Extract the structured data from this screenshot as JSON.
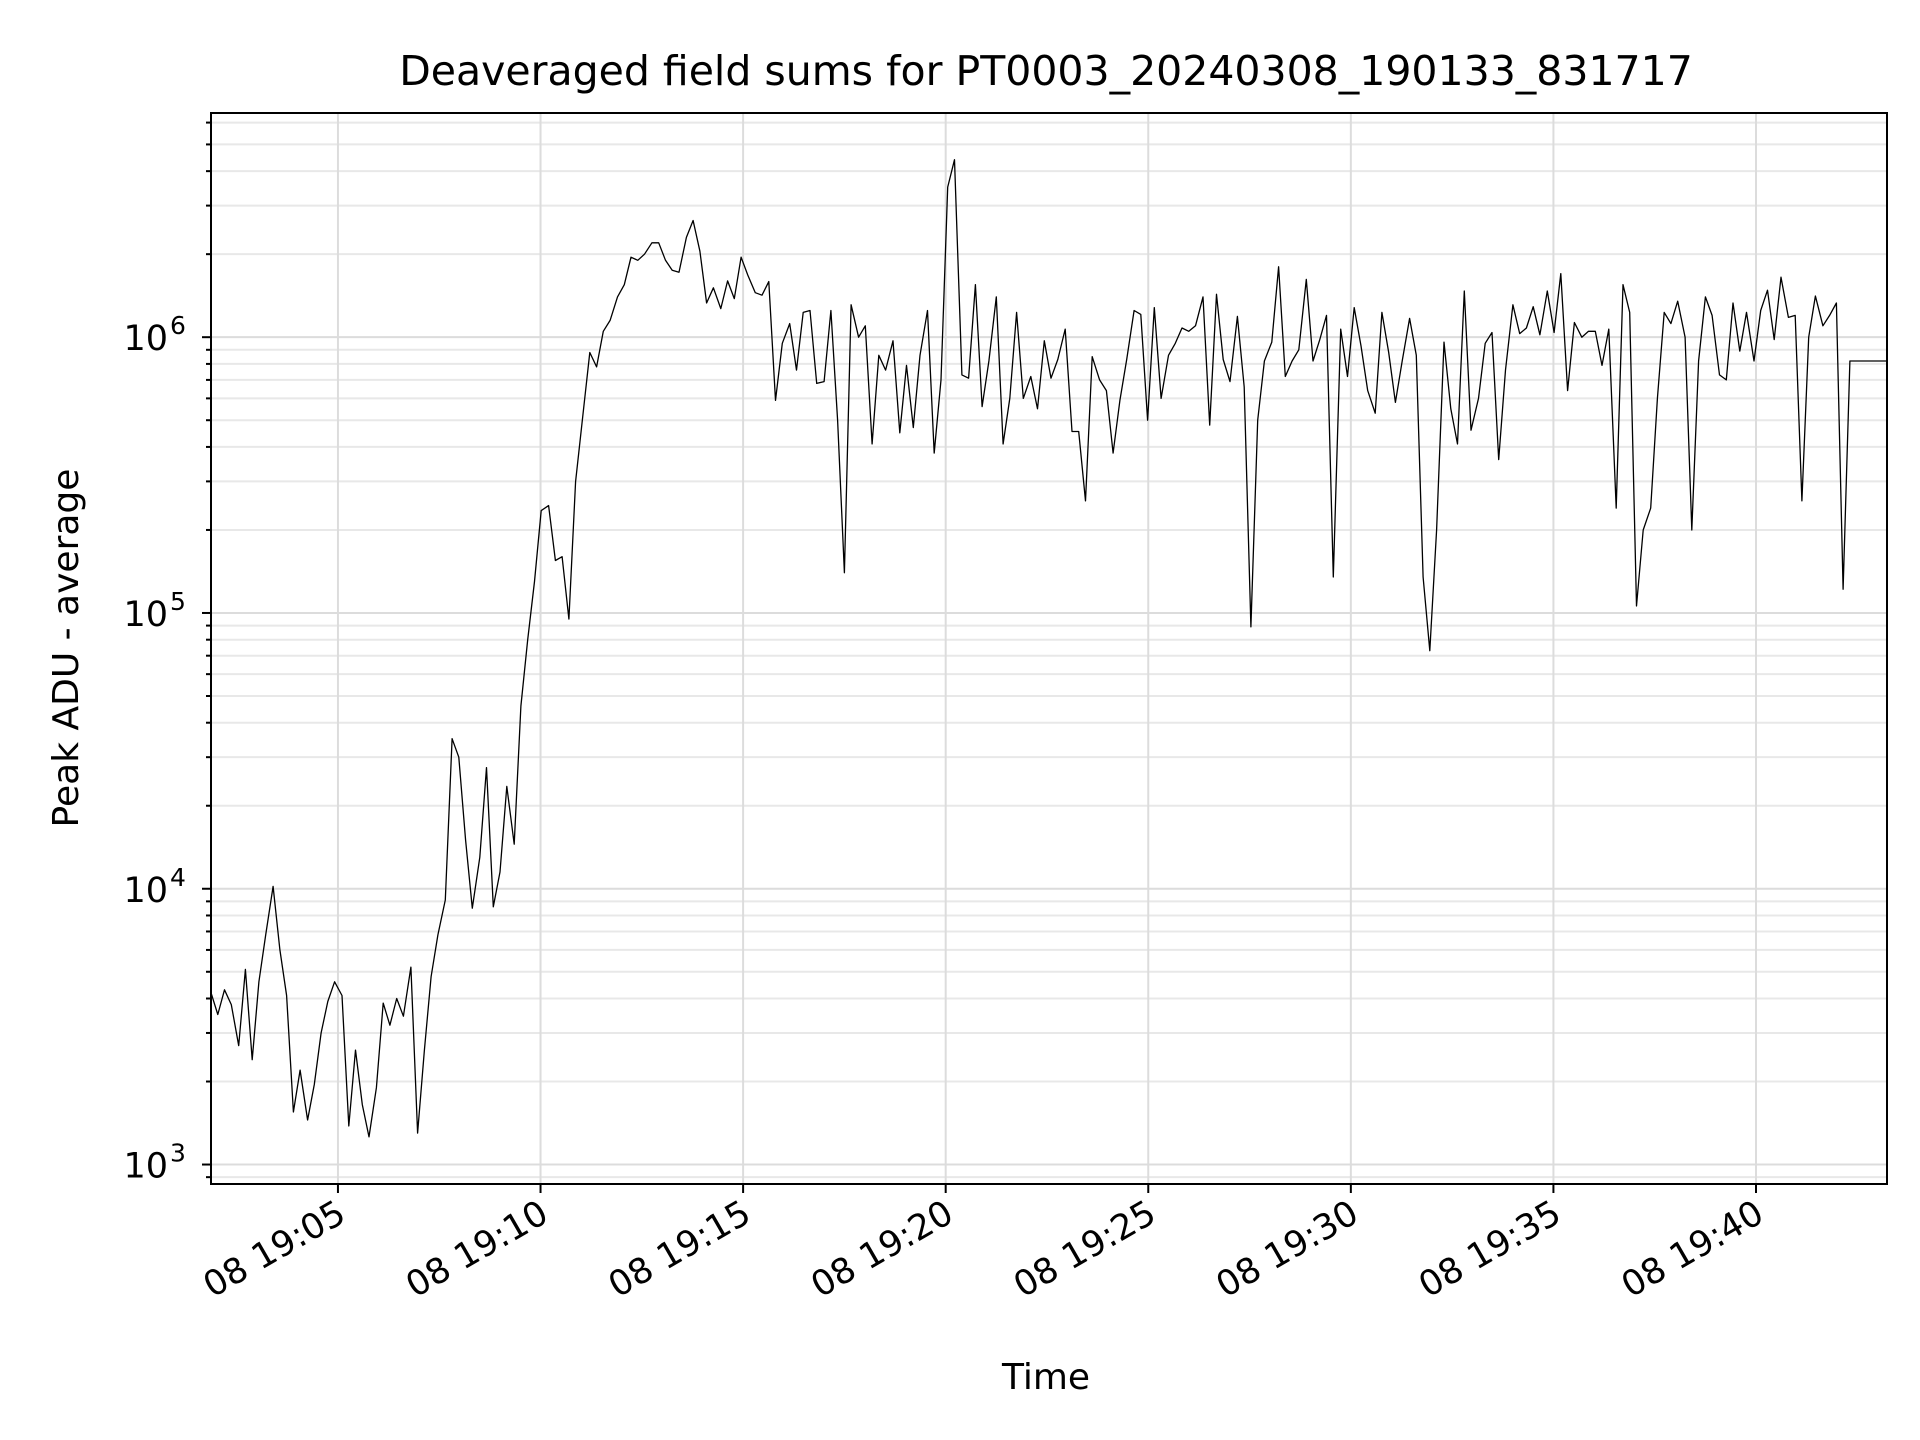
{
  "chart_data": {
    "type": "line",
    "title": "Deaveraged field sums for PT0003_20240308_190133_831717",
    "xlabel": "Time",
    "ylabel": "Peak ADU - average",
    "y_scale": "log",
    "ylim": [
      850,
      6500000
    ],
    "xlim": [
      "08 19:01:52",
      "08 19:43:14"
    ],
    "grid": true,
    "x_ticks": [
      "08 19:05",
      "08 19:10",
      "08 19:15",
      "08 19:20",
      "08 19:25",
      "08 19:30",
      "08 19:35",
      "08 19:40"
    ],
    "x_tick_times": [
      "19:05:00",
      "19:10:00",
      "19:15:00",
      "19:20:00",
      "19:25:00",
      "19:30:00",
      "19:35:00",
      "19:40:00"
    ],
    "y_ticks": [
      {
        "value": 1000,
        "base": "10",
        "exp": "3"
      },
      {
        "value": 10000,
        "base": "10",
        "exp": "4"
      },
      {
        "value": 100000,
        "base": "10",
        "exp": "5"
      },
      {
        "value": 1000000,
        "base": "10",
        "exp": "6"
      }
    ],
    "series": [
      {
        "line_color": "#000000",
        "x": [
          "19:01:52",
          "19:02:02",
          "19:02:12",
          "19:02:22",
          "19:02:33",
          "19:02:43",
          "19:02:53",
          "19:03:03",
          "19:03:13",
          "19:03:24",
          "19:03:34",
          "19:03:44",
          "19:03:54",
          "19:04:04",
          "19:04:15",
          "19:04:25",
          "19:04:35",
          "19:04:45",
          "19:04:55",
          "19:05:06",
          "19:05:16",
          "19:05:26",
          "19:05:36",
          "19:05:46",
          "19:05:57",
          "19:06:07",
          "19:06:17",
          "19:06:27",
          "19:06:37",
          "19:06:48",
          "19:06:58",
          "19:07:08",
          "19:07:18",
          "19:07:28",
          "19:07:39",
          "19:07:49",
          "19:07:59",
          "19:08:09",
          "19:08:19",
          "19:08:30",
          "19:08:40",
          "19:08:50",
          "19:09:00",
          "19:09:10",
          "19:09:21",
          "19:09:31",
          "19:09:41",
          "19:09:51",
          "19:10:01",
          "19:10:12",
          "19:10:22",
          "19:10:32",
          "19:10:42",
          "19:10:52",
          "19:11:03",
          "19:11:13",
          "19:11:23",
          "19:11:33",
          "19:11:43",
          "19:11:54",
          "19:12:04",
          "19:12:14",
          "19:12:24",
          "19:12:34",
          "19:12:45",
          "19:12:55",
          "19:13:05",
          "19:13:15",
          "19:13:25",
          "19:13:36",
          "19:13:46",
          "19:13:56",
          "19:14:06",
          "19:14:16",
          "19:14:27",
          "19:14:37",
          "19:14:47",
          "19:14:57",
          "19:15:07",
          "19:15:18",
          "19:15:28",
          "19:15:38",
          "19:15:48",
          "19:15:58",
          "19:16:09",
          "19:16:19",
          "19:16:29",
          "19:16:39",
          "19:16:49",
          "19:17:00",
          "19:17:10",
          "19:17:20",
          "19:17:30",
          "19:17:40",
          "19:17:51",
          "19:18:01",
          "19:18:11",
          "19:18:21",
          "19:18:31",
          "19:18:42",
          "19:18:52",
          "19:19:02",
          "19:19:12",
          "19:19:22",
          "19:19:33",
          "19:19:43",
          "19:19:53",
          "19:20:03",
          "19:20:13",
          "19:20:24",
          "19:20:34",
          "19:20:44",
          "19:20:54",
          "19:21:04",
          "19:21:15",
          "19:21:25",
          "19:21:35",
          "19:21:45",
          "19:21:55",
          "19:22:06",
          "19:22:16",
          "19:22:26",
          "19:22:36",
          "19:22:46",
          "19:22:57",
          "19:23:07",
          "19:23:17",
          "19:23:27",
          "19:23:37",
          "19:23:48",
          "19:23:58",
          "19:24:08",
          "19:24:18",
          "19:24:28",
          "19:24:39",
          "19:24:49",
          "19:24:59",
          "19:25:09",
          "19:25:19",
          "19:25:30",
          "19:25:40",
          "19:25:50",
          "19:26:00",
          "19:26:10",
          "19:26:21",
          "19:26:31",
          "19:26:41",
          "19:26:51",
          "19:27:01",
          "19:27:12",
          "19:27:22",
          "19:27:32",
          "19:27:42",
          "19:27:52",
          "19:28:03",
          "19:28:13",
          "19:28:23",
          "19:28:33",
          "19:28:43",
          "19:28:54",
          "19:29:04",
          "19:29:14",
          "19:29:24",
          "19:29:34",
          "19:29:45",
          "19:29:55",
          "19:30:05",
          "19:30:15",
          "19:30:25",
          "19:30:36",
          "19:30:46",
          "19:30:56",
          "19:31:06",
          "19:31:16",
          "19:31:27",
          "19:31:37",
          "19:31:47",
          "19:31:57",
          "19:32:07",
          "19:32:18",
          "19:32:28",
          "19:32:38",
          "19:32:48",
          "19:32:58",
          "19:33:09",
          "19:33:19",
          "19:33:29",
          "19:33:39",
          "19:33:49",
          "19:34:00",
          "19:34:10",
          "19:34:20",
          "19:34:30",
          "19:34:40",
          "19:34:51",
          "19:35:01",
          "19:35:11",
          "19:35:21",
          "19:35:31",
          "19:35:42",
          "19:35:52",
          "19:36:02",
          "19:36:12",
          "19:36:22",
          "19:36:33",
          "19:36:43",
          "19:36:53",
          "19:37:03",
          "19:37:13",
          "19:37:24",
          "19:37:34",
          "19:37:44",
          "19:37:54",
          "19:38:04",
          "19:38:15",
          "19:38:25",
          "19:38:35",
          "19:38:45",
          "19:38:55",
          "19:39:06",
          "19:39:16",
          "19:39:26",
          "19:39:36",
          "19:39:46",
          "19:39:57",
          "19:40:07",
          "19:40:17",
          "19:40:27",
          "19:40:37",
          "19:40:48",
          "19:40:58",
          "19:41:08",
          "19:41:18",
          "19:41:28",
          "19:41:39",
          "19:41:49",
          "19:41:59",
          "19:42:09",
          "19:42:19",
          "19:42:30",
          "19:42:40",
          "19:42:50",
          "19:43:00",
          "19:43:14"
        ],
        "y": [
          4200,
          3500,
          4300,
          3800,
          2700,
          5100,
          2400,
          4600,
          6800,
          10200,
          6000,
          4100,
          1550,
          2200,
          1450,
          1950,
          3000,
          3900,
          4600,
          4100,
          1380,
          2600,
          1650,
          1260,
          1900,
          3850,
          3200,
          4000,
          3450,
          5200,
          1300,
          2600,
          4800,
          6800,
          9100,
          35000,
          30000,
          15000,
          8500,
          13000,
          27500,
          8600,
          11500,
          23500,
          14500,
          46000,
          80000,
          130000,
          235000,
          245000,
          155000,
          160000,
          95000,
          300000,
          530000,
          880000,
          780000,
          1050000,
          1150000,
          1400000,
          1550000,
          1950000,
          1900000,
          2000000,
          2200000,
          2200000,
          1900000,
          1750000,
          1720000,
          2300000,
          2650000,
          2050000,
          1330000,
          1510000,
          1270000,
          1600000,
          1380000,
          1950000,
          1680000,
          1450000,
          1420000,
          1590000,
          590000,
          950000,
          1120000,
          760000,
          1230000,
          1250000,
          680000,
          690000,
          1250000,
          500000,
          140000,
          1310000,
          1000000,
          1100000,
          410000,
          860000,
          760000,
          970000,
          450000,
          790000,
          470000,
          860000,
          1250000,
          380000,
          700000,
          3500000,
          4400000,
          730000,
          710000,
          1550000,
          560000,
          820000,
          1400000,
          410000,
          600000,
          1230000,
          600000,
          720000,
          550000,
          970000,
          710000,
          830000,
          1070000,
          455000,
          455000,
          255000,
          850000,
          700000,
          640000,
          380000,
          590000,
          830000,
          1250000,
          1210000,
          500000,
          1280000,
          600000,
          860000,
          950000,
          1080000,
          1050000,
          1100000,
          1400000,
          480000,
          1430000,
          830000,
          690000,
          1190000,
          660000,
          89000,
          500000,
          820000,
          960000,
          1800000,
          720000,
          820000,
          900000,
          1620000,
          820000,
          980000,
          1200000,
          135000,
          1070000,
          720000,
          1280000,
          930000,
          640000,
          530000,
          1230000,
          880000,
          580000,
          820000,
          1170000,
          860000,
          135000,
          73000,
          200000,
          960000,
          550000,
          410000,
          1470000,
          460000,
          600000,
          950000,
          1040000,
          360000,
          760000,
          1310000,
          1030000,
          1080000,
          1290000,
          1020000,
          1470000,
          1040000,
          1700000,
          640000,
          1130000,
          1000000,
          1050000,
          1050000,
          790000,
          1070000,
          240000,
          1550000,
          1230000,
          106000,
          200000,
          240000,
          600000,
          1230000,
          1120000,
          1350000,
          1000000,
          200000,
          820000,
          1400000,
          1200000,
          730000,
          700000,
          1330000,
          890000,
          1230000,
          820000,
          1250000,
          1480000,
          980000,
          1650000,
          1180000,
          1200000,
          255000,
          1000000,
          1410000,
          1100000,
          1200000,
          1330000,
          122000,
          820000,
          820000,
          820000,
          820000,
          820000,
          820000
        ]
      }
    ]
  }
}
